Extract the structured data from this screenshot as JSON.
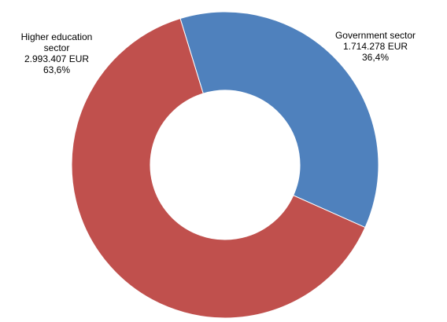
{
  "chart_data": {
    "type": "donut",
    "categories": [
      "Government sector",
      "Higher education sector"
    ],
    "values": [
      1714278,
      2993407
    ],
    "value_labels": [
      "1.714.278 EUR",
      "2.993.407 EUR"
    ],
    "percent_labels": [
      "36,4%",
      "63,6%"
    ],
    "colors": [
      "#4f81bd",
      "#c0504d"
    ]
  }
}
